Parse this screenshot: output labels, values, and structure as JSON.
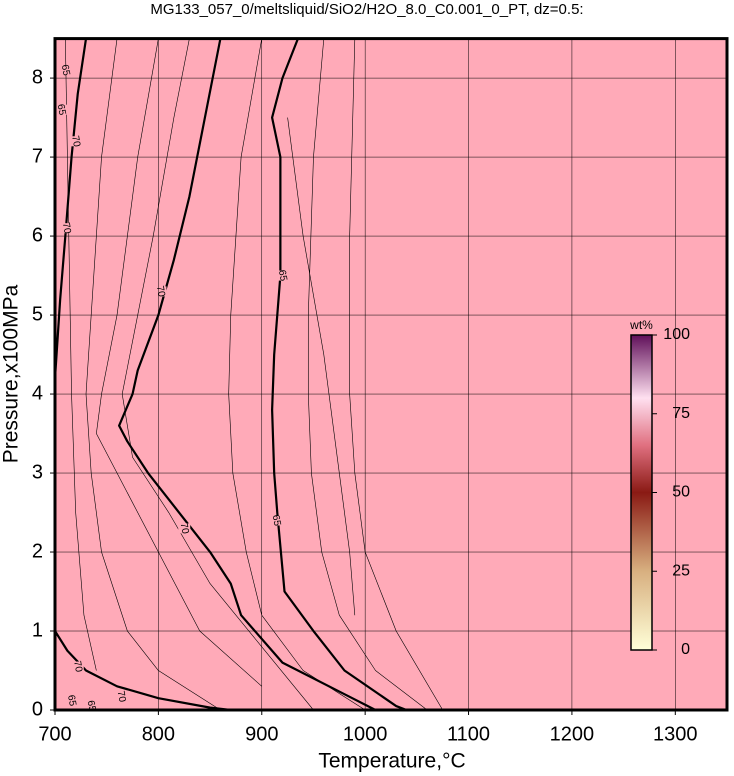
{
  "chart_data": {
    "type": "contour",
    "title": "MG133_057_0/meltsliquid/SiO2/H2O_8.0_C0.001_0_PT, dz=0.5:",
    "x_label": "Temperature,°C",
    "y_label": "Pressure,x100MPa",
    "xlim": [
      700,
      1350
    ],
    "ylim": [
      0,
      8.5
    ],
    "xticks": [
      700,
      800,
      900,
      1000,
      1100,
      1200,
      1300
    ],
    "yticks": [
      0,
      1,
      2,
      3,
      4,
      5,
      6,
      7,
      8
    ],
    "grid": true,
    "fill_color": "#ffaab8",
    "line_color": "#000000",
    "contours": [
      {
        "level": 65,
        "width": 2.2,
        "x": [
          935,
          920,
          910,
          918,
          918,
          912,
          910,
          912,
          915,
          922,
          950,
          980,
          1030,
          1040
        ],
        "y": [
          8.5,
          8.0,
          7.5,
          7.0,
          5.5,
          4.5,
          3.8,
          3.0,
          2.5,
          1.5,
          1.0,
          0.5,
          0.05,
          0
        ]
      },
      {
        "level": 70,
        "width": 2.2,
        "x": [
          860,
          845,
          830,
          815,
          800,
          780,
          775,
          762,
          770,
          790,
          820,
          850,
          870,
          880,
          920,
          980,
          1010
        ],
        "y": [
          8.5,
          7.5,
          6.5,
          5.7,
          5.0,
          4.3,
          4.0,
          3.6,
          3.4,
          3.0,
          2.5,
          2.0,
          1.6,
          1.2,
          0.6,
          0.2,
          0
        ]
      },
      {
        "level": 65,
        "width": 2.2,
        "x": [
          730,
          722,
          716,
          710,
          705,
          702,
          700
        ],
        "y": [
          8.5,
          7.8,
          7.0,
          6.0,
          5.2,
          4.6,
          4.2
        ]
      },
      {
        "level": 70,
        "width": 2.2,
        "x": [
          700,
          712,
          730,
          760,
          800,
          850,
          870
        ],
        "y": [
          1.0,
          0.75,
          0.5,
          0.3,
          0.15,
          0.03,
          0
        ]
      },
      {
        "level": 65,
        "width": 0.6,
        "x": [
          900,
          880,
          870,
          868,
          872,
          885,
          900,
          940,
          1000
        ],
        "y": [
          8.5,
          7,
          5,
          4,
          3,
          2,
          1.2,
          0.5,
          0
        ]
      },
      {
        "level": 65,
        "width": 0.6,
        "x": [
          960,
          950,
          945,
          945,
          948,
          958,
          975,
          1010,
          1060
        ],
        "y": [
          8.5,
          7,
          5,
          4,
          3,
          2,
          1.2,
          0.5,
          0
        ]
      },
      {
        "level": 65,
        "width": 0.6,
        "x": [
          925,
          940,
          960,
          975,
          985,
          990
        ],
        "y": [
          7.5,
          6.0,
          4.5,
          3.0,
          2.0,
          1.2
        ]
      },
      {
        "level": 70,
        "width": 0.6,
        "x": [
          800,
          780,
          760,
          745,
          740,
          760,
          800,
          840,
          900
        ],
        "y": [
          8.5,
          7,
          5,
          4,
          3.5,
          3,
          2,
          1,
          0.3
        ]
      },
      {
        "level": 70,
        "width": 0.6,
        "x": [
          760,
          745,
          735,
          730,
          735,
          745,
          770,
          800,
          860
        ],
        "y": [
          8.5,
          7,
          5,
          4,
          3,
          2,
          1,
          0.5,
          0
        ]
      },
      {
        "level": 70,
        "width": 0.6,
        "x": [
          830,
          815,
          795,
          780,
          765,
          775,
          810,
          850,
          900,
          950
        ],
        "y": [
          8.5,
          7.5,
          6,
          5,
          4,
          3.2,
          2.5,
          1.6,
          0.8,
          0
        ]
      },
      {
        "level": 65,
        "width": 0.6,
        "x": [
          990,
          985,
          985,
          990,
          1000,
          1030,
          1075
        ],
        "y": [
          8.5,
          6,
          4,
          3,
          2,
          1,
          0
        ]
      },
      {
        "level": 70,
        "width": 0.6,
        "x": [
          710,
          712,
          714,
          716,
          720,
          728,
          740
        ],
        "y": [
          8.5,
          7,
          5.5,
          4,
          2.5,
          1.2,
          0.5
        ]
      }
    ],
    "contour_labels": [
      {
        "text": "65",
        "x": 920,
        "y": 5.5
      },
      {
        "text": "65",
        "x": 914,
        "y": 2.4
      },
      {
        "text": "70",
        "x": 802,
        "y": 5.3
      },
      {
        "text": "70",
        "x": 825,
        "y": 2.3
      },
      {
        "text": "70",
        "x": 720,
        "y": 7.2
      },
      {
        "text": "70",
        "x": 711,
        "y": 6.1
      },
      {
        "text": "65",
        "x": 706,
        "y": 7.6
      },
      {
        "text": "65",
        "x": 710,
        "y": 8.1
      },
      {
        "text": "70",
        "x": 722,
        "y": 0.55
      },
      {
        "text": "70",
        "x": 764,
        "y": 0.17
      },
      {
        "text": "65",
        "x": 716,
        "y": 0.12
      },
      {
        "text": "65",
        "x": 735,
        "y": 0.05
      }
    ],
    "colorbar": {
      "label": "wt%",
      "lim": [
        0,
        100
      ],
      "ticks": [
        0,
        25,
        50,
        75,
        100
      ],
      "stops": [
        {
          "value": 0,
          "color": "#ffffd8"
        },
        {
          "value": 25,
          "color": "#d8b080"
        },
        {
          "value": 50,
          "color": "#8a1a14"
        },
        {
          "value": 65,
          "color": "#e07080"
        },
        {
          "value": 80,
          "color": "#ffe0f0"
        },
        {
          "value": 100,
          "color": "#60105a"
        }
      ]
    }
  }
}
